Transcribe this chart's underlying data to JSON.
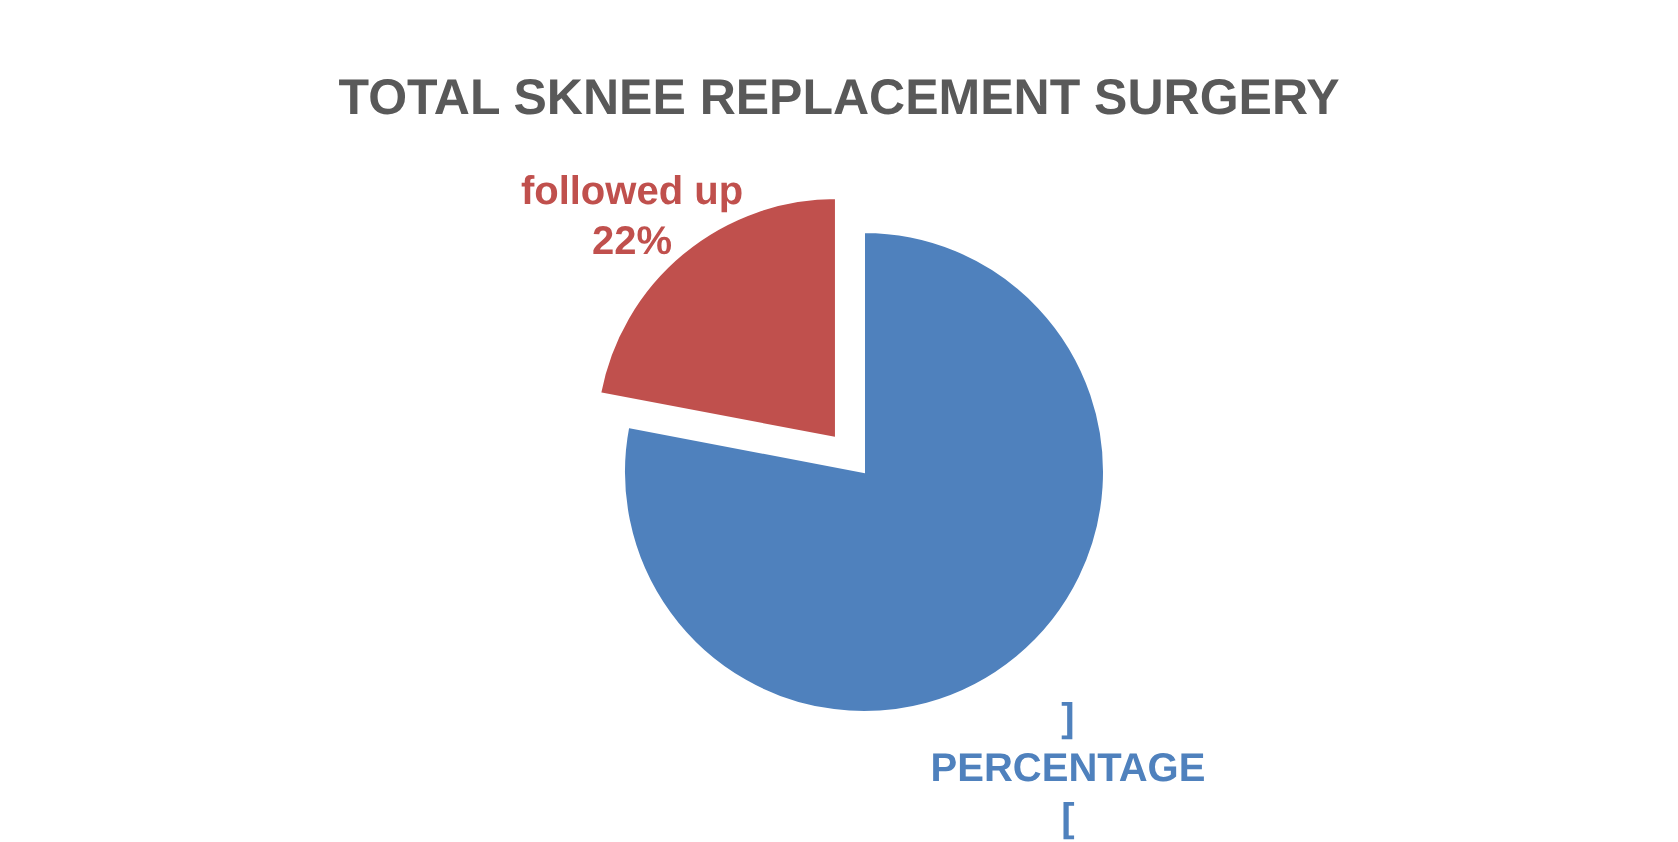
{
  "chart_data": {
    "type": "pie",
    "title": "TOTAL SKNEE REPLACEMENT SURGERY",
    "categories": [
      "]\nPERCENTAGE\n[",
      "followed up"
    ],
    "values": [
      78,
      22
    ],
    "colors": [
      "#4f81bd",
      "#c0504d"
    ],
    "value_labels": [
      null,
      "22%"
    ]
  }
}
